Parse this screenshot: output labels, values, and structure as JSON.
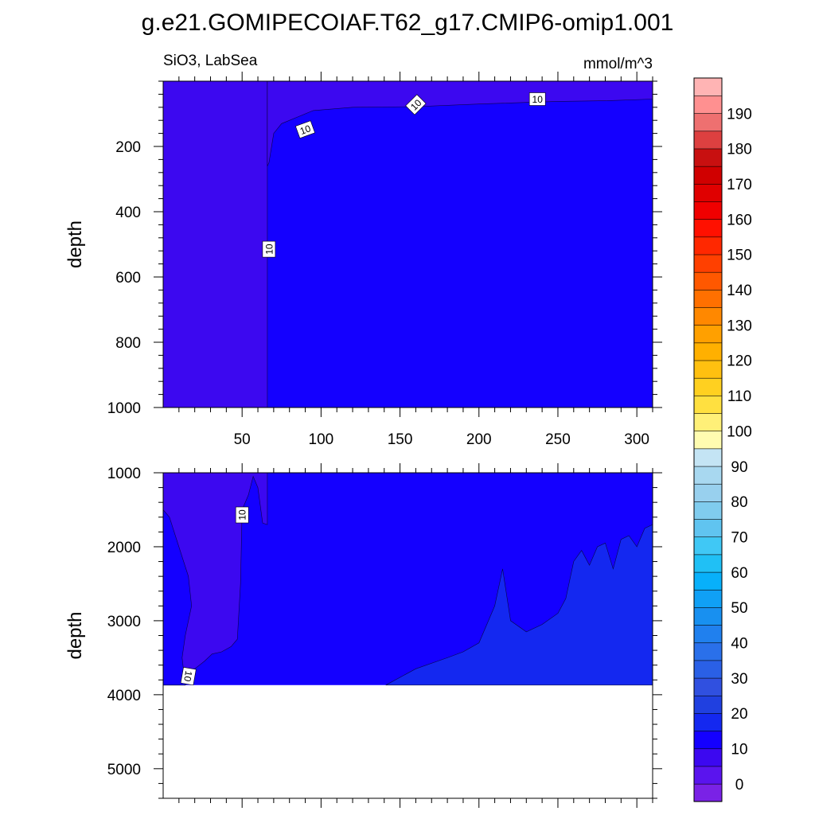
{
  "title": "g.e21.GOMIPECOIAF.T62_g17.CMIP6-omip1.001",
  "subtitle_left": "SiO3, LabSea",
  "subtitle_right": "mmol/m^3",
  "chart_data": [
    {
      "type": "heatmap",
      "panel": "upper",
      "ylabel": "depth",
      "xlabel": "",
      "xlim": [
        0,
        310
      ],
      "ylim": [
        1000,
        0
      ],
      "x_ticks": [
        50,
        100,
        150,
        200,
        250,
        300
      ],
      "y_ticks": [
        200,
        400,
        600,
        800,
        1000
      ],
      "background_value": 12,
      "regions": [
        {
          "level": 8,
          "description": "low SiO3 column west of x=66",
          "boundary": [
            [
              0,
              0
            ],
            [
              66,
              0
            ],
            [
              66,
              1000
            ],
            [
              0,
              1000
            ]
          ]
        },
        {
          "level": 8,
          "description": "thin surface layer",
          "boundary": [
            [
              66,
              0
            ],
            [
              310,
              0
            ],
            [
              310,
              55
            ],
            [
              280,
              60
            ],
            [
              250,
              62
            ],
            [
              200,
              70
            ],
            [
              160,
              78
            ],
            [
              120,
              80
            ],
            [
              95,
              90
            ],
            [
              85,
              110
            ],
            [
              75,
              130
            ],
            [
              70,
              160
            ],
            [
              67,
              250
            ],
            [
              66,
              260
            ]
          ]
        }
      ],
      "contour_labels": [
        {
          "text": "10",
          "x": 67,
          "y": 515,
          "angle": -90
        },
        {
          "text": "10",
          "x": 90,
          "y": 148,
          "angle": -20
        },
        {
          "text": "10",
          "x": 160,
          "y": 72,
          "angle": -45
        },
        {
          "text": "10",
          "x": 237,
          "y": 55,
          "angle": 0
        }
      ]
    },
    {
      "type": "heatmap",
      "panel": "lower",
      "ylabel": "depth",
      "xlabel": "",
      "xlim": [
        0,
        310
      ],
      "ylim": [
        5400,
        1000
      ],
      "y_ticks": [
        1000,
        2000,
        3000,
        4000,
        5000
      ],
      "data_bottom": 3870,
      "background_value": 12,
      "regions": [
        {
          "level": 8,
          "description": "low SiO3 tongue in west",
          "boundary": [
            [
              0,
              1000
            ],
            [
              66,
              1000
            ],
            [
              66,
              1700
            ],
            [
              63,
              1680
            ],
            [
              60,
              1200
            ],
            [
              57,
              1050
            ],
            [
              54,
              1300
            ],
            [
              50,
              1500
            ],
            [
              49,
              2500
            ],
            [
              47,
              3250
            ],
            [
              43,
              3350
            ],
            [
              37,
              3420
            ],
            [
              31,
              3450
            ],
            [
              26,
              3550
            ],
            [
              20,
              3650
            ],
            [
              16,
              3750
            ],
            [
              14,
              3870
            ],
            [
              0,
              3870
            ]
          ]
        },
        {
          "level": 12,
          "description": "inner column near west wall",
          "boundary": [
            [
              0,
              1500
            ],
            [
              4,
              1600
            ],
            [
              10,
              2000
            ],
            [
              16,
              2400
            ],
            [
              18,
              2800
            ],
            [
              14,
              3200
            ],
            [
              12,
              3500
            ],
            [
              14,
              3870
            ],
            [
              0,
              3870
            ]
          ]
        },
        {
          "level": 18,
          "description": "deep higher SiO3 in east",
          "boundary": [
            [
              141,
              3870
            ],
            [
              160,
              3650
            ],
            [
              180,
              3500
            ],
            [
              190,
              3420
            ],
            [
              200,
              3300
            ],
            [
              210,
              2800
            ],
            [
              215,
              2300
            ],
            [
              220,
              3000
            ],
            [
              230,
              3150
            ],
            [
              240,
              3050
            ],
            [
              250,
              2900
            ],
            [
              255,
              2700
            ],
            [
              260,
              2200
            ],
            [
              265,
              2050
            ],
            [
              270,
              2250
            ],
            [
              275,
              2000
            ],
            [
              280,
              1950
            ],
            [
              285,
              2300
            ],
            [
              290,
              1900
            ],
            [
              295,
              1850
            ],
            [
              300,
              2000
            ],
            [
              305,
              1750
            ],
            [
              310,
              1700
            ],
            [
              310,
              3870
            ]
          ]
        }
      ],
      "contour_labels": [
        {
          "text": "10",
          "x": 50,
          "y": 1570,
          "angle": -90
        },
        {
          "text": "10",
          "x": 16,
          "y": 3750,
          "angle": 100
        }
      ]
    },
    {
      "type": "colorbar",
      "levels": [
        -5,
        0,
        5,
        10,
        15,
        20,
        25,
        30,
        35,
        40,
        45,
        50,
        55,
        60,
        65,
        70,
        75,
        80,
        85,
        90,
        95,
        100,
        105,
        110,
        115,
        120,
        125,
        130,
        135,
        140,
        145,
        150,
        155,
        160,
        165,
        170,
        175,
        180,
        185,
        190,
        195,
        200
      ],
      "labels": [
        "0",
        "10",
        "20",
        "30",
        "40",
        "50",
        "60",
        "70",
        "80",
        "90",
        "100",
        "110",
        "120",
        "130",
        "140",
        "150",
        "160",
        "170",
        "180",
        "190"
      ],
      "colors": [
        "#7a22e6",
        "#5a14ee",
        "#3c08f0",
        "#1400ff",
        "#1428f0",
        "#2040e0",
        "#3050e0",
        "#2a60e6",
        "#2a70ea",
        "#2080ee",
        "#1890f0",
        "#10a0f5",
        "#08b0fa",
        "#20c0f5",
        "#40c8f5",
        "#60c4f0",
        "#80ccee",
        "#98d0ee",
        "#a8d8f0",
        "#c4e4f4",
        "#fffcb0",
        "#fff078",
        "#ffe040",
        "#ffd020",
        "#ffc010",
        "#ffb000",
        "#ffa000",
        "#ff8800",
        "#ff7000",
        "#ff5800",
        "#ff4000",
        "#ff2800",
        "#ff1000",
        "#f00000",
        "#e00000",
        "#d00000",
        "#c81010",
        "#dd4040",
        "#ee7070",
        "#ff9090",
        "#ffb4b4"
      ]
    }
  ]
}
